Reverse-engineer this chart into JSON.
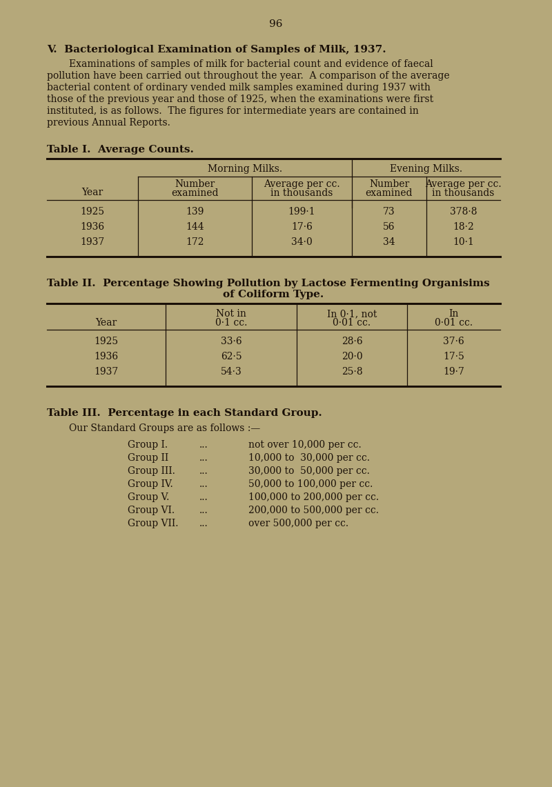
{
  "bg_color": "#b5a87a",
  "text_color": "#1a1008",
  "page_number": "96",
  "section_title": "V.  Bacteriological Examination of Samples of Milk, 1937.",
  "body_text": [
    "Examinations of samples of milk for bacterial count and evidence of faecal",
    "pollution have been carried out throughout the year.  A comparison of the average",
    "bacterial content of ordinary vended milk samples examined during 1937 with",
    "those of the previous year and those of 1925, when the examinations were first",
    "instituted, is as follows.  The figures for intermediate years are contained in",
    "previous Annual Reports."
  ],
  "table1_title": "Table I.  Average Counts.",
  "table1_header1": "Morning Milks.",
  "table1_header2": "Evening Milks.",
  "table1_data": [
    [
      "1925",
      "139",
      "199·1",
      "73",
      "378·8"
    ],
    [
      "1936",
      "144",
      "17·6",
      "56",
      "18·2"
    ],
    [
      "1937",
      "172",
      "34·0",
      "34",
      "10·1"
    ]
  ],
  "table2_title_line1": "Table II.  Percentage Showing Pollution by Lactose Fermenting Organisims",
  "table2_title_line2": "of Coliform Type.",
  "table2_data": [
    [
      "1925",
      "33·6",
      "28·6",
      "37·6"
    ],
    [
      "1936",
      "62·5",
      "20·0",
      "17·5"
    ],
    [
      "1937",
      "54·3",
      "25·8",
      "19·7"
    ]
  ],
  "table3_title": "Table III.  Percentage in each Standard Group.",
  "table3_intro": "Our Standard Groups are as follows :—",
  "table3_groups": [
    [
      "Group I.",
      "...",
      "not over 10,000 per cc."
    ],
    [
      "Group II",
      "...",
      "10,000 to  30,000 per cc."
    ],
    [
      "Group III.",
      "...",
      "30,000 to  50,000 per cc."
    ],
    [
      "Group IV.",
      "...",
      "50,000 to 100,000 per cc."
    ],
    [
      "Group V.",
      "...",
      "100,000 to 200,000 per cc."
    ],
    [
      "Group VI.",
      "...",
      "200,000 to 500,000 per cc."
    ],
    [
      "Group VII.",
      "...",
      "over 500,000 per cc."
    ]
  ]
}
